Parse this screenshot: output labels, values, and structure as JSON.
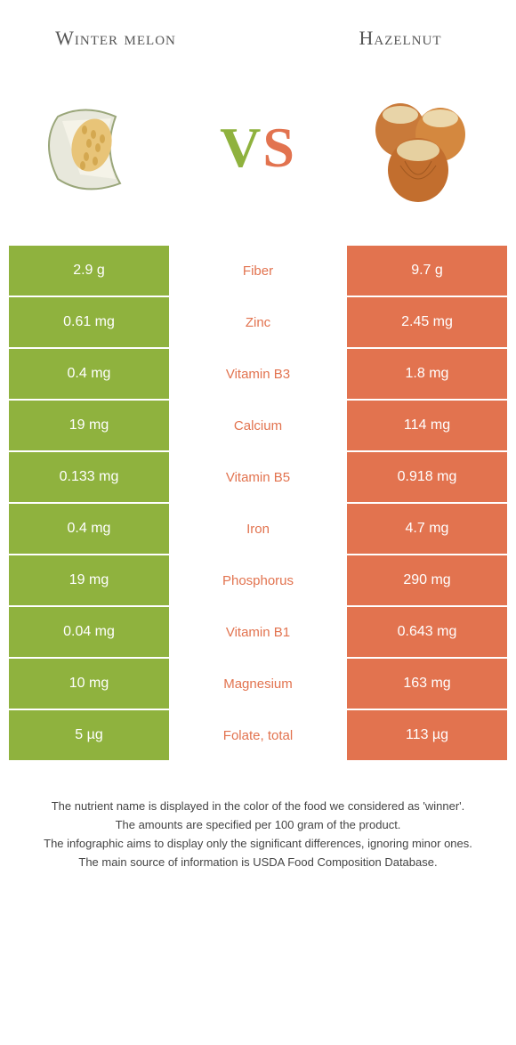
{
  "header": {
    "left_title": "Winter melon",
    "right_title": "Hazelnut",
    "vs_v": "V",
    "vs_s": "S"
  },
  "colors": {
    "left": "#8fb23e",
    "right": "#e2734f",
    "background": "#ffffff"
  },
  "rows": [
    {
      "left": "2.9 g",
      "label": "Fiber",
      "right": "9.7 g",
      "winner": "right"
    },
    {
      "left": "0.61 mg",
      "label": "Zinc",
      "right": "2.45 mg",
      "winner": "right"
    },
    {
      "left": "0.4 mg",
      "label": "Vitamin B3",
      "right": "1.8 mg",
      "winner": "right"
    },
    {
      "left": "19 mg",
      "label": "Calcium",
      "right": "114 mg",
      "winner": "right"
    },
    {
      "left": "0.133 mg",
      "label": "Vitamin B5",
      "right": "0.918 mg",
      "winner": "right"
    },
    {
      "left": "0.4 mg",
      "label": "Iron",
      "right": "4.7 mg",
      "winner": "right"
    },
    {
      "left": "19 mg",
      "label": "Phosphorus",
      "right": "290 mg",
      "winner": "right"
    },
    {
      "left": "0.04 mg",
      "label": "Vitamin B1",
      "right": "0.643 mg",
      "winner": "right"
    },
    {
      "left": "10 mg",
      "label": "Magnesium",
      "right": "163 mg",
      "winner": "right"
    },
    {
      "left": "5 µg",
      "label": "Folate, total",
      "right": "113 µg",
      "winner": "right"
    }
  ],
  "footer": {
    "line1": "The nutrient name is displayed in the color of the food we considered as 'winner'.",
    "line2": "The amounts are specified per 100 gram of the product.",
    "line3": "The infographic aims to display only the significant differences, ignoring minor ones.",
    "line4": "The main source of information is USDA Food Composition Database."
  }
}
